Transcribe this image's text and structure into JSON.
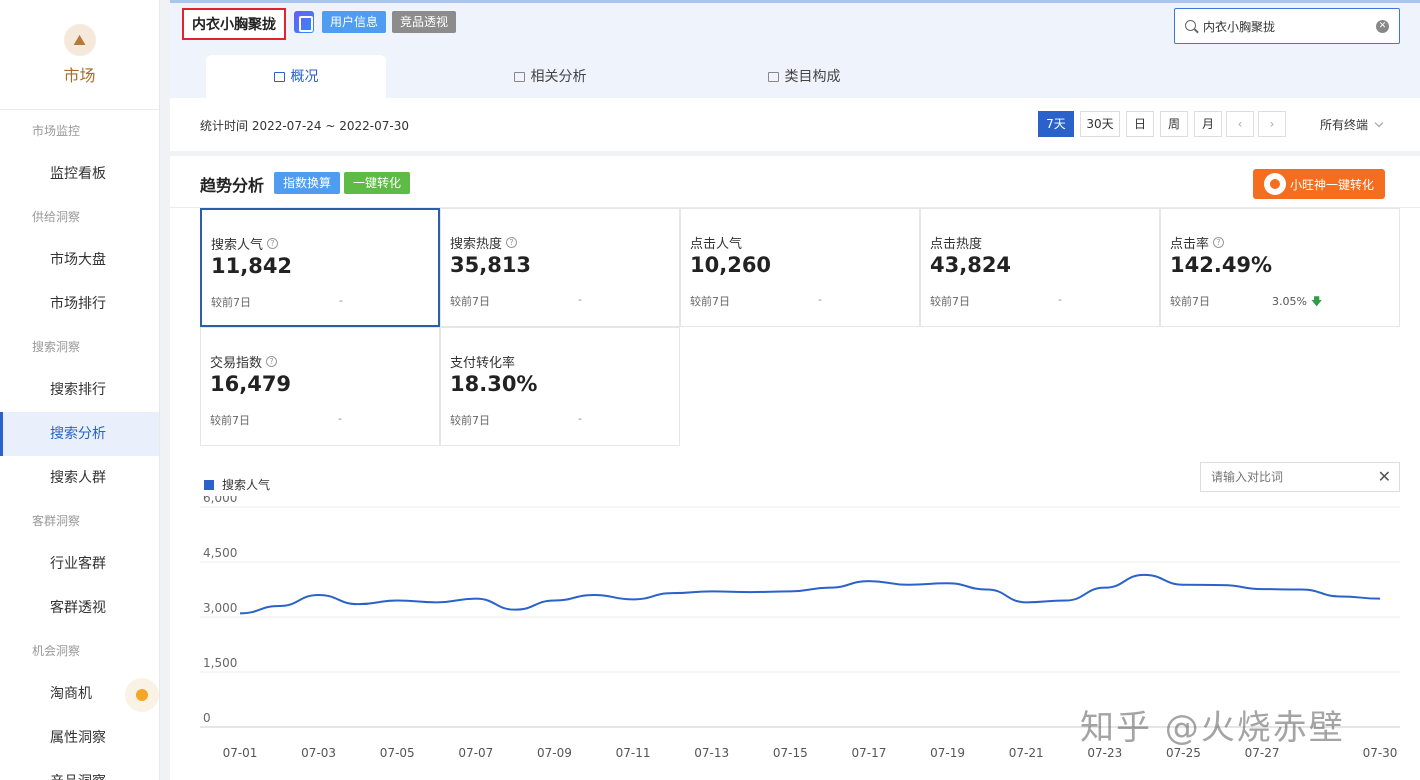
{
  "sidebar": {
    "logo_text": "市场",
    "logo_glyph": "⛰",
    "items": [
      {
        "type": "group",
        "label": "市场监控"
      },
      {
        "type": "item",
        "label": "监控看板"
      },
      {
        "type": "group",
        "label": "供给洞察"
      },
      {
        "type": "item",
        "label": "市场大盘"
      },
      {
        "type": "item",
        "label": "市场排行"
      },
      {
        "type": "group",
        "label": "搜索洞察"
      },
      {
        "type": "item",
        "label": "搜索排行"
      },
      {
        "type": "item",
        "label": "搜索分析",
        "active": true
      },
      {
        "type": "item",
        "label": "搜索人群"
      },
      {
        "type": "group",
        "label": "客群洞察"
      },
      {
        "type": "item",
        "label": "行业客群"
      },
      {
        "type": "item",
        "label": "客群透视"
      },
      {
        "type": "group",
        "label": "机会洞察"
      },
      {
        "type": "item",
        "label": "淘商机",
        "dot": true
      },
      {
        "type": "item",
        "label": "属性洞察"
      },
      {
        "type": "item",
        "label": "产品洞察"
      }
    ]
  },
  "header": {
    "keyword": "内衣小胸聚拢",
    "user_info": "用户信息",
    "competitor": "竞品透视",
    "search_value": "内衣小胸聚拢",
    "tabs": [
      "概况",
      "相关分析",
      "类目构成"
    ],
    "active_tab": 0,
    "date_range": "统计时间 2022-07-24 ~ 2022-07-30",
    "periods": [
      "7天",
      "30天",
      "日",
      "周",
      "月"
    ],
    "active_period": 0,
    "prev": "‹",
    "next": "›",
    "terminal": "所有终端"
  },
  "trend": {
    "title": "趋势分析",
    "index_btn": "指数换算",
    "convert_btn": "一键转化",
    "xw_btn": "小旺神一键转化",
    "metrics": [
      {
        "label": "搜索人气",
        "help": true,
        "value": "11,842",
        "compare": "较前7日",
        "delta": "-",
        "selected": true
      },
      {
        "label": "搜索热度",
        "help": true,
        "value": "35,813",
        "compare": "较前7日",
        "delta": "-"
      },
      {
        "label": "点击人气",
        "help": false,
        "value": "10,260",
        "compare": "较前7日",
        "delta": "-"
      },
      {
        "label": "点击热度",
        "help": false,
        "value": "43,824",
        "compare": "较前7日",
        "delta": "-"
      },
      {
        "label": "点击率",
        "help": true,
        "value": "142.49%",
        "compare": "较前7日",
        "delta": "3.05%",
        "down": true
      },
      {
        "label": "交易指数",
        "help": true,
        "value": "16,479",
        "compare": "较前7日",
        "delta": "-"
      },
      {
        "label": "支付转化率",
        "help": false,
        "value": "18.30%",
        "compare": "较前7日",
        "delta": "-"
      }
    ],
    "legend": "搜索人气",
    "compare_placeholder": "请输入对比词",
    "help_glyph": "?",
    "close_glyph": "✕",
    "down_glyph": "🡇"
  },
  "chart_data": {
    "type": "line",
    "series": [
      {
        "name": "搜索人气",
        "color": "#2a62c9",
        "values": [
          3100,
          3300,
          3600,
          3350,
          3450,
          3400,
          3500,
          3200,
          3450,
          3600,
          3480,
          3650,
          3700,
          3680,
          3700,
          3800,
          3980,
          3880,
          3920,
          3750,
          3400,
          3450,
          3800,
          4150,
          3880,
          3870,
          3760,
          3750,
          3560,
          3500
        ]
      }
    ],
    "x": [
      "07-01",
      "07-02",
      "07-03",
      "07-04",
      "07-05",
      "07-06",
      "07-07",
      "07-08",
      "07-09",
      "07-10",
      "07-11",
      "07-12",
      "07-13",
      "07-14",
      "07-15",
      "07-16",
      "07-17",
      "07-18",
      "07-19",
      "07-20",
      "07-21",
      "07-22",
      "07-23",
      "07-24",
      "07-25",
      "07-26",
      "07-27",
      "07-28",
      "07-29",
      "07-30"
    ],
    "x_tick_labels": [
      "07-01",
      "07-03",
      "07-05",
      "07-07",
      "07-09",
      "07-11",
      "07-13",
      "07-15",
      "07-17",
      "07-19",
      "07-21",
      "07-23",
      "07-25",
      "07-27",
      "07-30"
    ],
    "y_ticks": [
      "6,000",
      "4,500",
      "3,000",
      "1,500",
      "0"
    ],
    "ylim": [
      0,
      6000
    ],
    "grid": true
  },
  "watermark": "知乎 @火烧赤壁"
}
